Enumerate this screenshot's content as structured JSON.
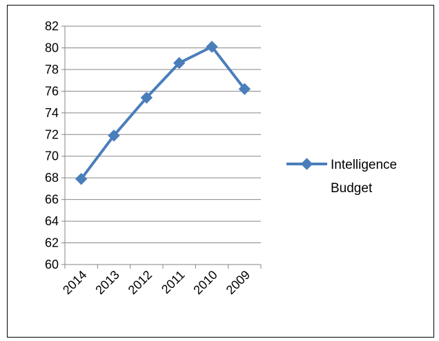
{
  "chart_data": {
    "type": "line",
    "categories": [
      "2014",
      "2013",
      "2012",
      "2011",
      "2010",
      "2009"
    ],
    "series": [
      {
        "name": "Intelligence Budget",
        "values": [
          67.9,
          71.9,
          75.4,
          78.6,
          80.1,
          76.2
        ]
      }
    ],
    "ylim": [
      60,
      82
    ],
    "yticks": [
      "60",
      "62",
      "64",
      "66",
      "68",
      "70",
      "72",
      "74",
      "76",
      "78",
      "80",
      "82"
    ],
    "grid": "horizontal",
    "legend_position": "right",
    "legend_lines": [
      "Intelligence",
      "Budget"
    ],
    "series_color": "#4A7EBB",
    "marker": "diamond"
  }
}
